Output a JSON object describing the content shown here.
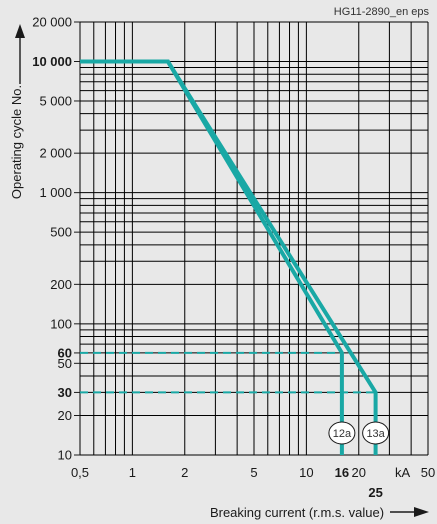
{
  "chart_data": {
    "type": "line",
    "figure_ref": "HG11-2890_en eps",
    "xlabel": "Breaking current (r.m.s. value)",
    "ylabel": "Operating cycle No.",
    "x_unit": "kA",
    "x_scale": "log",
    "y_scale": "log",
    "xlim": [
      0.5,
      50
    ],
    "ylim": [
      10,
      20000
    ],
    "grid": true,
    "x_ticks": [
      {
        "v": 0.5,
        "label": "0,5",
        "bold": false
      },
      {
        "v": 1,
        "label": "1",
        "bold": false
      },
      {
        "v": 2,
        "label": "2",
        "bold": false
      },
      {
        "v": 5,
        "label": "5",
        "bold": false
      },
      {
        "v": 10,
        "label": "10",
        "bold": false
      },
      {
        "v": 16,
        "label": "16",
        "bold": true
      },
      {
        "v": 20,
        "label": "20",
        "bold": false
      },
      {
        "v": 50,
        "label": "50",
        "bold": false
      }
    ],
    "x_extra_label": {
      "v": 25,
      "label": "25"
    },
    "y_ticks": [
      {
        "v": 20000,
        "label": "20 000",
        "bold": false
      },
      {
        "v": 10000,
        "label": "10 000",
        "bold": true
      },
      {
        "v": 5000,
        "label": "5 000",
        "bold": false
      },
      {
        "v": 2000,
        "label": "2 000",
        "bold": false
      },
      {
        "v": 1000,
        "label": "1 000",
        "bold": false
      },
      {
        "v": 500,
        "label": "500",
        "bold": false
      },
      {
        "v": 200,
        "label": "200",
        "bold": false
      },
      {
        "v": 100,
        "label": "100",
        "bold": false
      },
      {
        "v": 60,
        "label": "60",
        "bold": true
      },
      {
        "v": 50,
        "label": "50",
        "bold": false
      },
      {
        "v": 30,
        "label": "30",
        "bold": true
      },
      {
        "v": 20,
        "label": "20",
        "bold": false
      },
      {
        "v": 10,
        "label": "10",
        "bold": false
      }
    ],
    "series": [
      {
        "label": "12a",
        "points": [
          [
            0.5,
            10000
          ],
          [
            1.6,
            10000
          ],
          [
            16,
            60
          ],
          [
            16,
            10
          ]
        ]
      },
      {
        "label": "13a",
        "points": [
          [
            0.5,
            10000
          ],
          [
            1.6,
            10000
          ],
          [
            25,
            30
          ],
          [
            25,
            10
          ]
        ]
      }
    ],
    "reference_lines": [
      {
        "y": 60,
        "x_to": 16
      },
      {
        "y": 30,
        "x_to": 25
      }
    ],
    "colors": {
      "curve": "#19a8a5",
      "grid": "#000000",
      "background": "#e8e8e8"
    }
  }
}
